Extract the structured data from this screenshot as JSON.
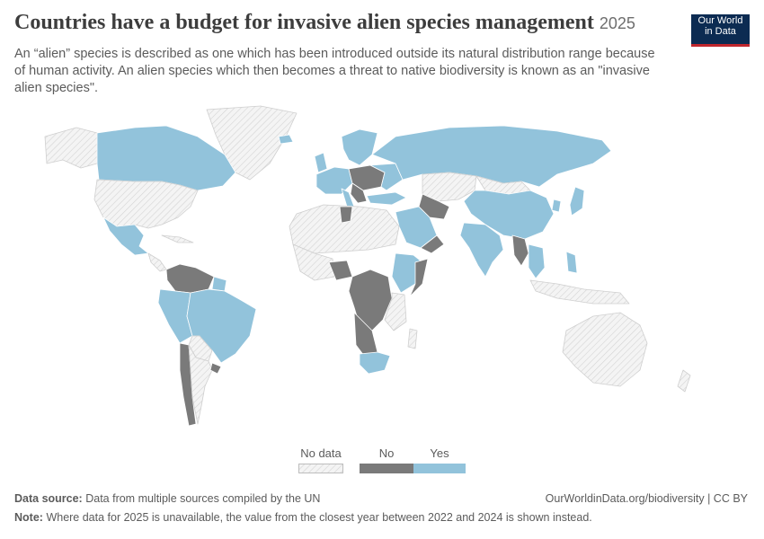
{
  "header": {
    "title": "Countries have a budget for invasive alien species management",
    "year": "2025",
    "subtitle": "An “alien” species is described as one which has been introduced outside its natural distribution range because of human activity. An alien species which then becomes a threat to native biodiversity is known as an \"invasive alien species\"."
  },
  "logo": {
    "line1": "Our World",
    "line2": "in Data"
  },
  "legend": {
    "items": [
      {
        "label": "No data",
        "color": "#f0f0f0"
      },
      {
        "label": "No",
        "color": "#7a7a7a"
      },
      {
        "label": "Yes",
        "color": "#92c3db"
      }
    ]
  },
  "colors": {
    "yes": "#92c3db",
    "no": "#7a7a7a",
    "nodata": "#f2f2f2",
    "border": "#ffffff"
  },
  "footer": {
    "source_label": "Data source:",
    "source_text": "Data from multiple sources compiled by the UN",
    "url": "OurWorldinData.org/biodiversity | CC BY",
    "note_label": "Note:",
    "note_text": "Where data for 2025 is unavailable, the value from the closest year between 2022 and 2024 is shown instead."
  }
}
